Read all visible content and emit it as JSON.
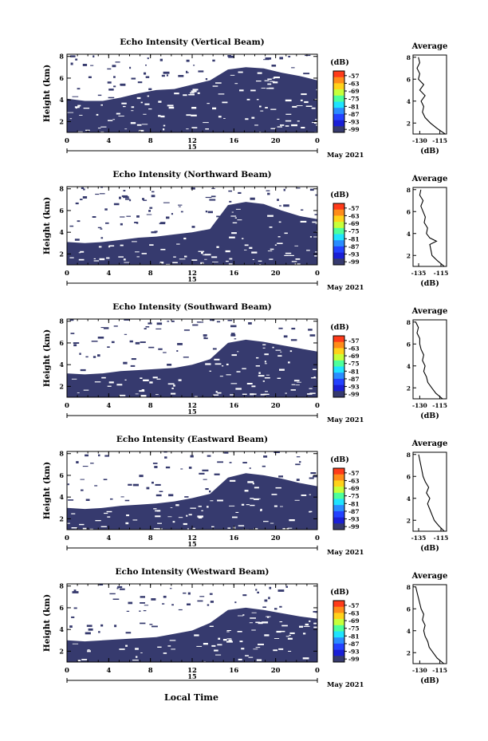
{
  "figure": {
    "units_label": "(dB)",
    "date_label": "May 2021",
    "xlabel": "Local Time",
    "ylabel": "Height (km)",
    "day_marker": "15",
    "avg_title": "Average",
    "avg_xlabel": "(dB)"
  },
  "colorbar": {
    "ticks": [
      "-57",
      "-63",
      "-69",
      "-75",
      "-81",
      "-87",
      "-93",
      "-99"
    ],
    "colors": [
      "#ff3b1a",
      "#ff8c1a",
      "#ffd21a",
      "#c6ff3a",
      "#4dff9b",
      "#1fe3ff",
      "#2a8cff",
      "#2342ff",
      "#1a1fd6",
      "#363a6e"
    ]
  },
  "chart_data": [
    {
      "type": "heatmap",
      "title": "Echo Intensity (Vertical Beam)",
      "x_ticks": [
        "0",
        "4",
        "8",
        "12",
        "16",
        "20",
        "0"
      ],
      "y_ticks": [
        "2",
        "4",
        "6",
        "8"
      ],
      "xlim": [
        0,
        24
      ],
      "ylim": [
        1,
        8.2
      ],
      "boundary_height_km": [
        4.1,
        3.9,
        3.9,
        4.2,
        4.6,
        4.9,
        5.0,
        5.4,
        5.8,
        6.8,
        7.0,
        6.9,
        6.5,
        6.2,
        5.8
      ],
      "average_profile": {
        "x_ticks": [
          "-130",
          "-115"
        ],
        "xlim": [
          -135,
          -110
        ],
        "y_ticks": [
          "2",
          "4",
          "6",
          "8"
        ],
        "ylim": [
          1,
          8.2
        ],
        "heights": [
          1.0,
          1.5,
          2.0,
          2.5,
          3.0,
          3.5,
          4.0,
          4.5,
          5.0,
          5.5,
          6.0,
          6.5,
          7.0,
          7.5,
          8.0
        ],
        "values": [
          -111,
          -117,
          -122,
          -126,
          -128,
          -127,
          -129,
          -126,
          -130,
          -127,
          -131,
          -130,
          -132,
          -130,
          -131
        ]
      }
    },
    {
      "type": "heatmap",
      "title": "Echo Intensity (Northward Beam)",
      "x_ticks": [
        "0",
        "4",
        "8",
        "12",
        "16",
        "20",
        "0"
      ],
      "y_ticks": [
        "2",
        "4",
        "6",
        "8"
      ],
      "xlim": [
        0,
        24
      ],
      "ylim": [
        1,
        8.2
      ],
      "boundary_height_km": [
        3.1,
        3.0,
        3.1,
        3.3,
        3.5,
        3.6,
        3.8,
        4.0,
        4.3,
        6.5,
        6.8,
        6.6,
        6.0,
        5.5,
        5.2
      ],
      "average_profile": {
        "x_ticks": [
          "-135",
          "-115"
        ],
        "xlim": [
          -140,
          -110
        ],
        "y_ticks": [
          "2",
          "4",
          "6",
          "8"
        ],
        "ylim": [
          1,
          8.2
        ],
        "heights": [
          1.0,
          1.5,
          2.0,
          2.5,
          3.0,
          3.3,
          3.6,
          4.0,
          4.5,
          5.0,
          5.5,
          6.0,
          6.5,
          7.0,
          7.5,
          8.0
        ],
        "values": [
          -112,
          -118,
          -123,
          -124,
          -125,
          -119,
          -125,
          -128,
          -127,
          -130,
          -129,
          -131,
          -133,
          -131,
          -134,
          -133
        ]
      }
    },
    {
      "type": "heatmap",
      "title": "Echo Intensity (Southward Beam)",
      "x_ticks": [
        "0",
        "4",
        "8",
        "12",
        "16",
        "20",
        "0"
      ],
      "y_ticks": [
        "2",
        "4",
        "6",
        "8"
      ],
      "xlim": [
        0,
        24
      ],
      "ylim": [
        1,
        8.2
      ],
      "boundary_height_km": [
        3.2,
        3.1,
        3.2,
        3.4,
        3.5,
        3.6,
        3.7,
        4.0,
        4.5,
        6.0,
        6.3,
        6.1,
        5.8,
        5.5,
        5.2
      ],
      "average_profile": {
        "x_ticks": [
          "-130",
          "-115"
        ],
        "xlim": [
          -135,
          -110
        ],
        "y_ticks": [
          "2",
          "4",
          "6",
          "8"
        ],
        "ylim": [
          1,
          8.2
        ],
        "heights": [
          1.0,
          1.5,
          2.0,
          2.5,
          3.0,
          3.5,
          4.0,
          4.5,
          5.0,
          5.5,
          6.0,
          6.5,
          7.0,
          7.5,
          8.0
        ],
        "values": [
          -113,
          -118,
          -121,
          -124,
          -125,
          -127,
          -126,
          -128,
          -127,
          -129,
          -130,
          -130,
          -132,
          -131,
          -133
        ]
      }
    },
    {
      "type": "heatmap",
      "title": "Echo Intensity (Eastward Beam)",
      "x_ticks": [
        "0",
        "4",
        "8",
        "12",
        "16",
        "20",
        "0"
      ],
      "y_ticks": [
        "2",
        "4",
        "6",
        "8"
      ],
      "xlim": [
        0,
        24
      ],
      "ylim": [
        1,
        8.2
      ],
      "boundary_height_km": [
        3.0,
        2.9,
        3.0,
        3.2,
        3.3,
        3.4,
        3.6,
        3.9,
        4.3,
        5.8,
        6.2,
        6.0,
        5.7,
        5.3,
        5.0
      ],
      "average_profile": {
        "x_ticks": [
          "-135",
          "-115"
        ],
        "xlim": [
          -140,
          -110
        ],
        "y_ticks": [
          "2",
          "4",
          "6",
          "8"
        ],
        "ylim": [
          1,
          8.2
        ],
        "heights": [
          1.0,
          1.5,
          2.0,
          2.5,
          3.0,
          3.5,
          4.0,
          4.5,
          5.0,
          5.5,
          6.0,
          6.5,
          7.0,
          7.5,
          8.0
        ],
        "values": [
          -112,
          -117,
          -121,
          -123,
          -125,
          -127,
          -125,
          -128,
          -126,
          -129,
          -131,
          -132,
          -133,
          -134,
          -135
        ]
      }
    },
    {
      "type": "heatmap",
      "title": "Echo Intensity (Westward Beam)",
      "x_ticks": [
        "0",
        "4",
        "8",
        "12",
        "16",
        "20",
        "0"
      ],
      "y_ticks": [
        "2",
        "4",
        "6",
        "8"
      ],
      "xlim": [
        0,
        24
      ],
      "ylim": [
        1,
        8.2
      ],
      "boundary_height_km": [
        3.0,
        2.9,
        3.0,
        3.1,
        3.2,
        3.3,
        3.6,
        3.9,
        4.6,
        5.8,
        6.0,
        5.8,
        5.5,
        5.2,
        5.0
      ],
      "average_profile": {
        "x_ticks": [
          "-130",
          "-115"
        ],
        "xlim": [
          -135,
          -110
        ],
        "y_ticks": [
          "2",
          "4",
          "6",
          "8"
        ],
        "ylim": [
          1,
          8.2
        ],
        "heights": [
          1.0,
          1.5,
          2.0,
          2.5,
          3.0,
          3.5,
          4.0,
          4.5,
          5.0,
          5.5,
          6.0,
          6.5,
          7.0,
          7.5,
          8.0
        ],
        "values": [
          -112,
          -117,
          -120,
          -123,
          -124,
          -126,
          -127,
          -126,
          -128,
          -127,
          -129,
          -130,
          -131,
          -132,
          -133
        ]
      }
    }
  ]
}
